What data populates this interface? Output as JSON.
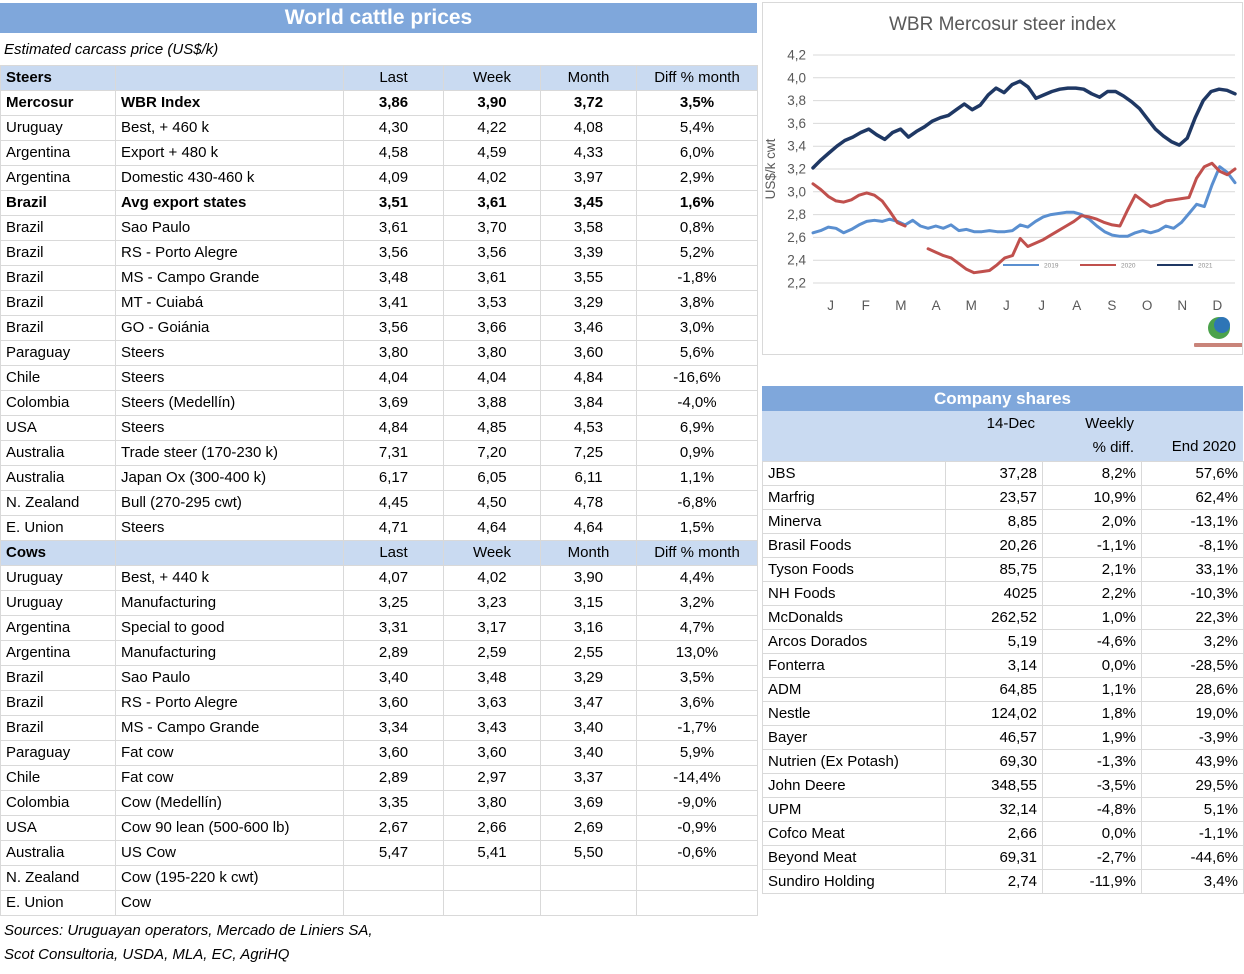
{
  "page": {
    "colors": {
      "header_blue": "#7FA7DB",
      "subheader_blue": "#C9DAF1",
      "grid_line": "#D9D9D9",
      "chart_text": "#595959"
    },
    "cattle_table": {
      "title": "World cattle prices",
      "subtitle": "Estimated carcass price (US$/k)",
      "value_columns": [
        "Last",
        "Week",
        "Month",
        "Diff % month"
      ],
      "sections": [
        {
          "label": "Steers",
          "rows": [
            {
              "country": "Mercosur",
              "item": "WBR Index",
              "values": [
                "3,86",
                "3,90",
                "3,72",
                "3,5%"
              ],
              "bold": true
            },
            {
              "country": "Uruguay",
              "item": "Best, + 460 k",
              "values": [
                "4,30",
                "4,22",
                "4,08",
                "5,4%"
              ]
            },
            {
              "country": "Argentina",
              "item": "Export + 480 k",
              "values": [
                "4,58",
                "4,59",
                "4,33",
                "6,0%"
              ]
            },
            {
              "country": "Argentina",
              "item": "Domestic 430-460 k",
              "values": [
                "4,09",
                "4,02",
                "3,97",
                "2,9%"
              ]
            },
            {
              "country": "Brazil",
              "item": "Avg export states",
              "values": [
                "3,51",
                "3,61",
                "3,45",
                "1,6%"
              ],
              "bold": true
            },
            {
              "country": "Brazil",
              "item": "Sao Paulo",
              "values": [
                "3,61",
                "3,70",
                "3,58",
                "0,8%"
              ]
            },
            {
              "country": "Brazil",
              "item": "RS - Porto Alegre",
              "values": [
                "3,56",
                "3,56",
                "3,39",
                "5,2%"
              ]
            },
            {
              "country": "Brazil",
              "item": "MS - Campo Grande",
              "values": [
                "3,48",
                "3,61",
                "3,55",
                "-1,8%"
              ]
            },
            {
              "country": "Brazil",
              "item": "MT - Cuiabá",
              "values": [
                "3,41",
                "3,53",
                "3,29",
                "3,8%"
              ]
            },
            {
              "country": "Brazil",
              "item": "GO - Goiánia",
              "values": [
                "3,56",
                "3,66",
                "3,46",
                "3,0%"
              ]
            },
            {
              "country": "Paraguay",
              "item": "Steers",
              "values": [
                "3,80",
                "3,80",
                "3,60",
                "5,6%"
              ]
            },
            {
              "country": "Chile",
              "item": "Steers",
              "values": [
                "4,04",
                "4,04",
                "4,84",
                "-16,6%"
              ]
            },
            {
              "country": "Colombia",
              "item": "Steers (Medellín)",
              "values": [
                "3,69",
                "3,88",
                "3,84",
                "-4,0%"
              ]
            },
            {
              "country": "USA",
              "item": "Steers",
              "values": [
                "4,84",
                "4,85",
                "4,53",
                "6,9%"
              ]
            },
            {
              "country": "Australia",
              "item": "Trade steer (170-230 k)",
              "values": [
                "7,31",
                "7,20",
                "7,25",
                "0,9%"
              ]
            },
            {
              "country": "Australia",
              "item": "Japan Ox (300-400 k)",
              "values": [
                "6,17",
                "6,05",
                "6,11",
                "1,1%"
              ]
            },
            {
              "country": "N. Zealand",
              "item": "Bull (270-295 cwt)",
              "values": [
                "4,45",
                "4,50",
                "4,78",
                "-6,8%"
              ]
            },
            {
              "country": "E. Union",
              "item": "Steers",
              "values": [
                "4,71",
                "4,64",
                "4,64",
                "1,5%"
              ]
            }
          ]
        },
        {
          "label": "Cows",
          "rows": [
            {
              "country": "Uruguay",
              "item": "Best, + 440 k",
              "values": [
                "4,07",
                "4,02",
                "3,90",
                "4,4%"
              ]
            },
            {
              "country": "Uruguay",
              "item": "Manufacturing",
              "values": [
                "3,25",
                "3,23",
                "3,15",
                "3,2%"
              ]
            },
            {
              "country": "Argentina",
              "item": "Special to good",
              "values": [
                "3,31",
                "3,17",
                "3,16",
                "4,7%"
              ]
            },
            {
              "country": "Argentina",
              "item": "Manufacturing",
              "values": [
                "2,89",
                "2,59",
                "2,55",
                "13,0%"
              ]
            },
            {
              "country": "Brazil",
              "item": "Sao Paulo",
              "values": [
                "3,40",
                "3,48",
                "3,29",
                "3,5%"
              ]
            },
            {
              "country": "Brazil",
              "item": "RS - Porto Alegre",
              "values": [
                "3,60",
                "3,63",
                "3,47",
                "3,6%"
              ]
            },
            {
              "country": "Brazil",
              "item": "MS - Campo Grande",
              "values": [
                "3,34",
                "3,43",
                "3,40",
                "-1,7%"
              ]
            },
            {
              "country": "Paraguay",
              "item": "Fat cow",
              "values": [
                "3,60",
                "3,60",
                "3,40",
                "5,9%"
              ]
            },
            {
              "country": "Chile",
              "item": "Fat cow",
              "values": [
                "2,89",
                "2,97",
                "3,37",
                "-14,4%"
              ]
            },
            {
              "country": "Colombia",
              "item": "Cow (Medellín)",
              "values": [
                "3,35",
                "3,80",
                "3,69",
                "-9,0%"
              ]
            },
            {
              "country": "USA",
              "item": "Cow 90 lean (500-600 lb)",
              "values": [
                "2,67",
                "2,66",
                "2,69",
                "-0,9%"
              ]
            },
            {
              "country": "Australia",
              "item": "US Cow",
              "values": [
                "5,47",
                "5,41",
                "5,50",
                "-0,6%"
              ]
            },
            {
              "country": "N. Zealand",
              "item": "Cow (195-220 k cwt)",
              "values": [
                "",
                "",
                "",
                ""
              ]
            },
            {
              "country": "E. Union",
              "item": "Cow",
              "values": [
                "",
                "",
                "",
                ""
              ]
            }
          ]
        }
      ],
      "sources_line1": "Sources: Uruguayan operators, Mercado de Liniers SA,",
      "sources_line2": "Scot Consultoria, USDA, MLA, EC, AgriHQ"
    },
    "company_shares": {
      "title": "Company shares",
      "header": {
        "date": "14-Dec",
        "weekly_line1": "Weekly",
        "weekly_line2": "% diff.",
        "end": "End 2020"
      },
      "rows": [
        {
          "name": "JBS",
          "price": "37,28",
          "weekly": "8,2%",
          "end_2020": "57,6%"
        },
        {
          "name": "Marfrig",
          "price": "23,57",
          "weekly": "10,9%",
          "end_2020": "62,4%"
        },
        {
          "name": "Minerva",
          "price": "8,85",
          "weekly": "2,0%",
          "end_2020": "-13,1%"
        },
        {
          "name": "Brasil Foods",
          "price": "20,26",
          "weekly": "-1,1%",
          "end_2020": "-8,1%"
        },
        {
          "name": "Tyson Foods",
          "price": "85,75",
          "weekly": "2,1%",
          "end_2020": "33,1%"
        },
        {
          "name": "NH Foods",
          "price": "4025",
          "weekly": "2,2%",
          "end_2020": "-10,3%"
        },
        {
          "name": "McDonalds",
          "price": "262,52",
          "weekly": "1,0%",
          "end_2020": "22,3%"
        },
        {
          "name": "Arcos Dorados",
          "price": "5,19",
          "weekly": "-4,6%",
          "end_2020": "3,2%"
        },
        {
          "name": "Fonterra",
          "price": "3,14",
          "weekly": "0,0%",
          "end_2020": "-28,5%"
        },
        {
          "name": "ADM",
          "price": "64,85",
          "weekly": "1,1%",
          "end_2020": "28,6%"
        },
        {
          "name": "Nestle",
          "price": "124,02",
          "weekly": "1,8%",
          "end_2020": "19,0%"
        },
        {
          "name": "Bayer",
          "price": "46,57",
          "weekly": "1,9%",
          "end_2020": "-3,9%"
        },
        {
          "name": "Nutrien (Ex Potash)",
          "price": "69,30",
          "weekly": "-1,3%",
          "end_2020": "43,9%"
        },
        {
          "name": "John Deere",
          "price": "348,55",
          "weekly": "-3,5%",
          "end_2020": "29,5%"
        },
        {
          "name": "UPM",
          "price": "32,14",
          "weekly": "-4,8%",
          "end_2020": "5,1%"
        },
        {
          "name": "Cofco Meat",
          "price": "2,66",
          "weekly": "0,0%",
          "end_2020": "-1,1%"
        },
        {
          "name": "Beyond Meat",
          "price": "69,31",
          "weekly": "-2,7%",
          "end_2020": "-44,6%"
        },
        {
          "name": "Sundiro Holding",
          "price": "2,74",
          "weekly": "-11,9%",
          "end_2020": "3,4%"
        }
      ]
    }
  },
  "chart_data": {
    "type": "line",
    "title": "WBR Mercosur steer index",
    "xlabel": "",
    "ylabel": "US$/k cwt",
    "ylim": [
      2.2,
      4.2
    ],
    "ytick_step": 0.2,
    "grid": true,
    "legend_position": "bottom-right-inside",
    "x_categories": [
      "J",
      "F",
      "M",
      "A",
      "M",
      "J",
      "J",
      "A",
      "S",
      "O",
      "N",
      "D"
    ],
    "series": [
      {
        "name": "2019",
        "color": "#5A8FD0",
        "stroke_width": 3,
        "values": [
          2.64,
          2.66,
          2.69,
          2.68,
          2.64,
          2.67,
          2.71,
          2.74,
          2.75,
          2.74,
          2.76,
          2.74,
          2.71,
          2.75,
          2.7,
          2.68,
          2.7,
          2.68,
          2.71,
          2.66,
          2.67,
          2.65,
          2.65,
          2.66,
          2.65,
          2.65,
          2.66,
          2.71,
          2.69,
          2.74,
          2.78,
          2.8,
          2.81,
          2.82,
          2.82,
          2.8,
          2.76,
          2.7,
          2.65,
          2.62,
          2.61,
          2.61,
          2.64,
          2.66,
          2.64,
          2.66,
          2.7,
          2.68,
          2.73,
          2.81,
          2.89,
          2.87,
          3.06,
          3.22,
          3.17,
          3.08
        ]
      },
      {
        "name": "2020",
        "color": "#C0504D",
        "stroke_width": 3,
        "values": [
          3.07,
          3.02,
          2.96,
          2.92,
          2.91,
          2.93,
          2.97,
          2.99,
          2.97,
          2.92,
          2.83,
          2.73,
          2.7,
          null,
          null,
          2.5,
          2.47,
          2.44,
          2.42,
          2.37,
          2.32,
          2.29,
          2.3,
          2.31,
          2.36,
          2.42,
          2.44,
          2.59,
          2.52,
          2.55,
          2.58,
          2.62,
          2.66,
          2.7,
          2.74,
          2.79,
          2.78,
          2.76,
          2.73,
          2.71,
          2.7,
          2.84,
          2.97,
          2.92,
          2.87,
          2.89,
          2.92,
          2.93,
          2.94,
          2.95,
          3.12,
          3.22,
          3.25,
          3.18,
          3.15,
          3.2
        ]
      },
      {
        "name": "2021",
        "color": "#1F3864",
        "stroke_width": 3.5,
        "values": [
          3.21,
          3.28,
          3.34,
          3.4,
          3.45,
          3.48,
          3.52,
          3.55,
          3.5,
          3.46,
          3.52,
          3.55,
          3.48,
          3.53,
          3.57,
          3.62,
          3.65,
          3.67,
          3.72,
          3.77,
          3.72,
          3.76,
          3.85,
          3.91,
          3.87,
          3.94,
          3.97,
          3.92,
          3.82,
          3.85,
          3.88,
          3.9,
          3.91,
          3.91,
          3.9,
          3.86,
          3.83,
          3.88,
          3.88,
          3.84,
          3.79,
          3.73,
          3.64,
          3.55,
          3.49,
          3.44,
          3.41,
          3.47,
          3.65,
          3.8,
          3.88,
          3.9,
          3.89,
          3.86
        ]
      }
    ]
  }
}
